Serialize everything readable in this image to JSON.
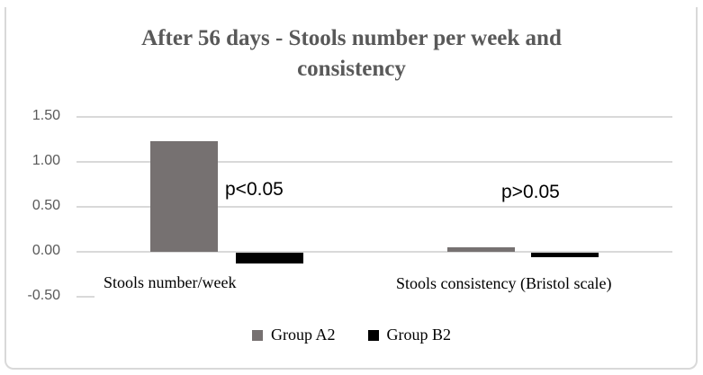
{
  "chart_data": {
    "type": "bar",
    "title": "After 56 days - Stools number per week and consistency",
    "categories": [
      "Stools number/week",
      "Stools consistency (Bristol scale)"
    ],
    "series": [
      {
        "name": "Group A2",
        "color": "#767171",
        "values": [
          1.23,
          0.05
        ]
      },
      {
        "name": "Group B2",
        "color": "#000000",
        "values": [
          -0.12,
          -0.05
        ]
      }
    ],
    "y_axis": {
      "range": [
        -0.5,
        1.5
      ],
      "tick_step": 0.5,
      "ticks": [
        {
          "label": "1.50",
          "value": 1.5,
          "full_gridline": true
        },
        {
          "label": "1.00",
          "value": 1.0,
          "full_gridline": true
        },
        {
          "label": "0.50",
          "value": 0.5,
          "full_gridline": true
        },
        {
          "label": "0.00",
          "value": 0.0,
          "full_gridline": true
        },
        {
          "label": "-0.50",
          "value": -0.5,
          "full_gridline": false
        }
      ]
    },
    "annotations": [
      {
        "text": "p<0.05",
        "category": "Stools number/week"
      },
      {
        "text": "p>0.05",
        "category": "Stools consistency (Bristol scale)"
      }
    ],
    "legend": {
      "position": "bottom",
      "entries": [
        "Group A2",
        "Group B2"
      ]
    },
    "gridlines": true
  },
  "colors": {
    "title_text": "#595959",
    "axis_text": "#595959",
    "gridline": "#d9d9d9",
    "frame_border": "#d9d9d9",
    "bar_gray": "#767171",
    "bar_black": "#000000"
  }
}
